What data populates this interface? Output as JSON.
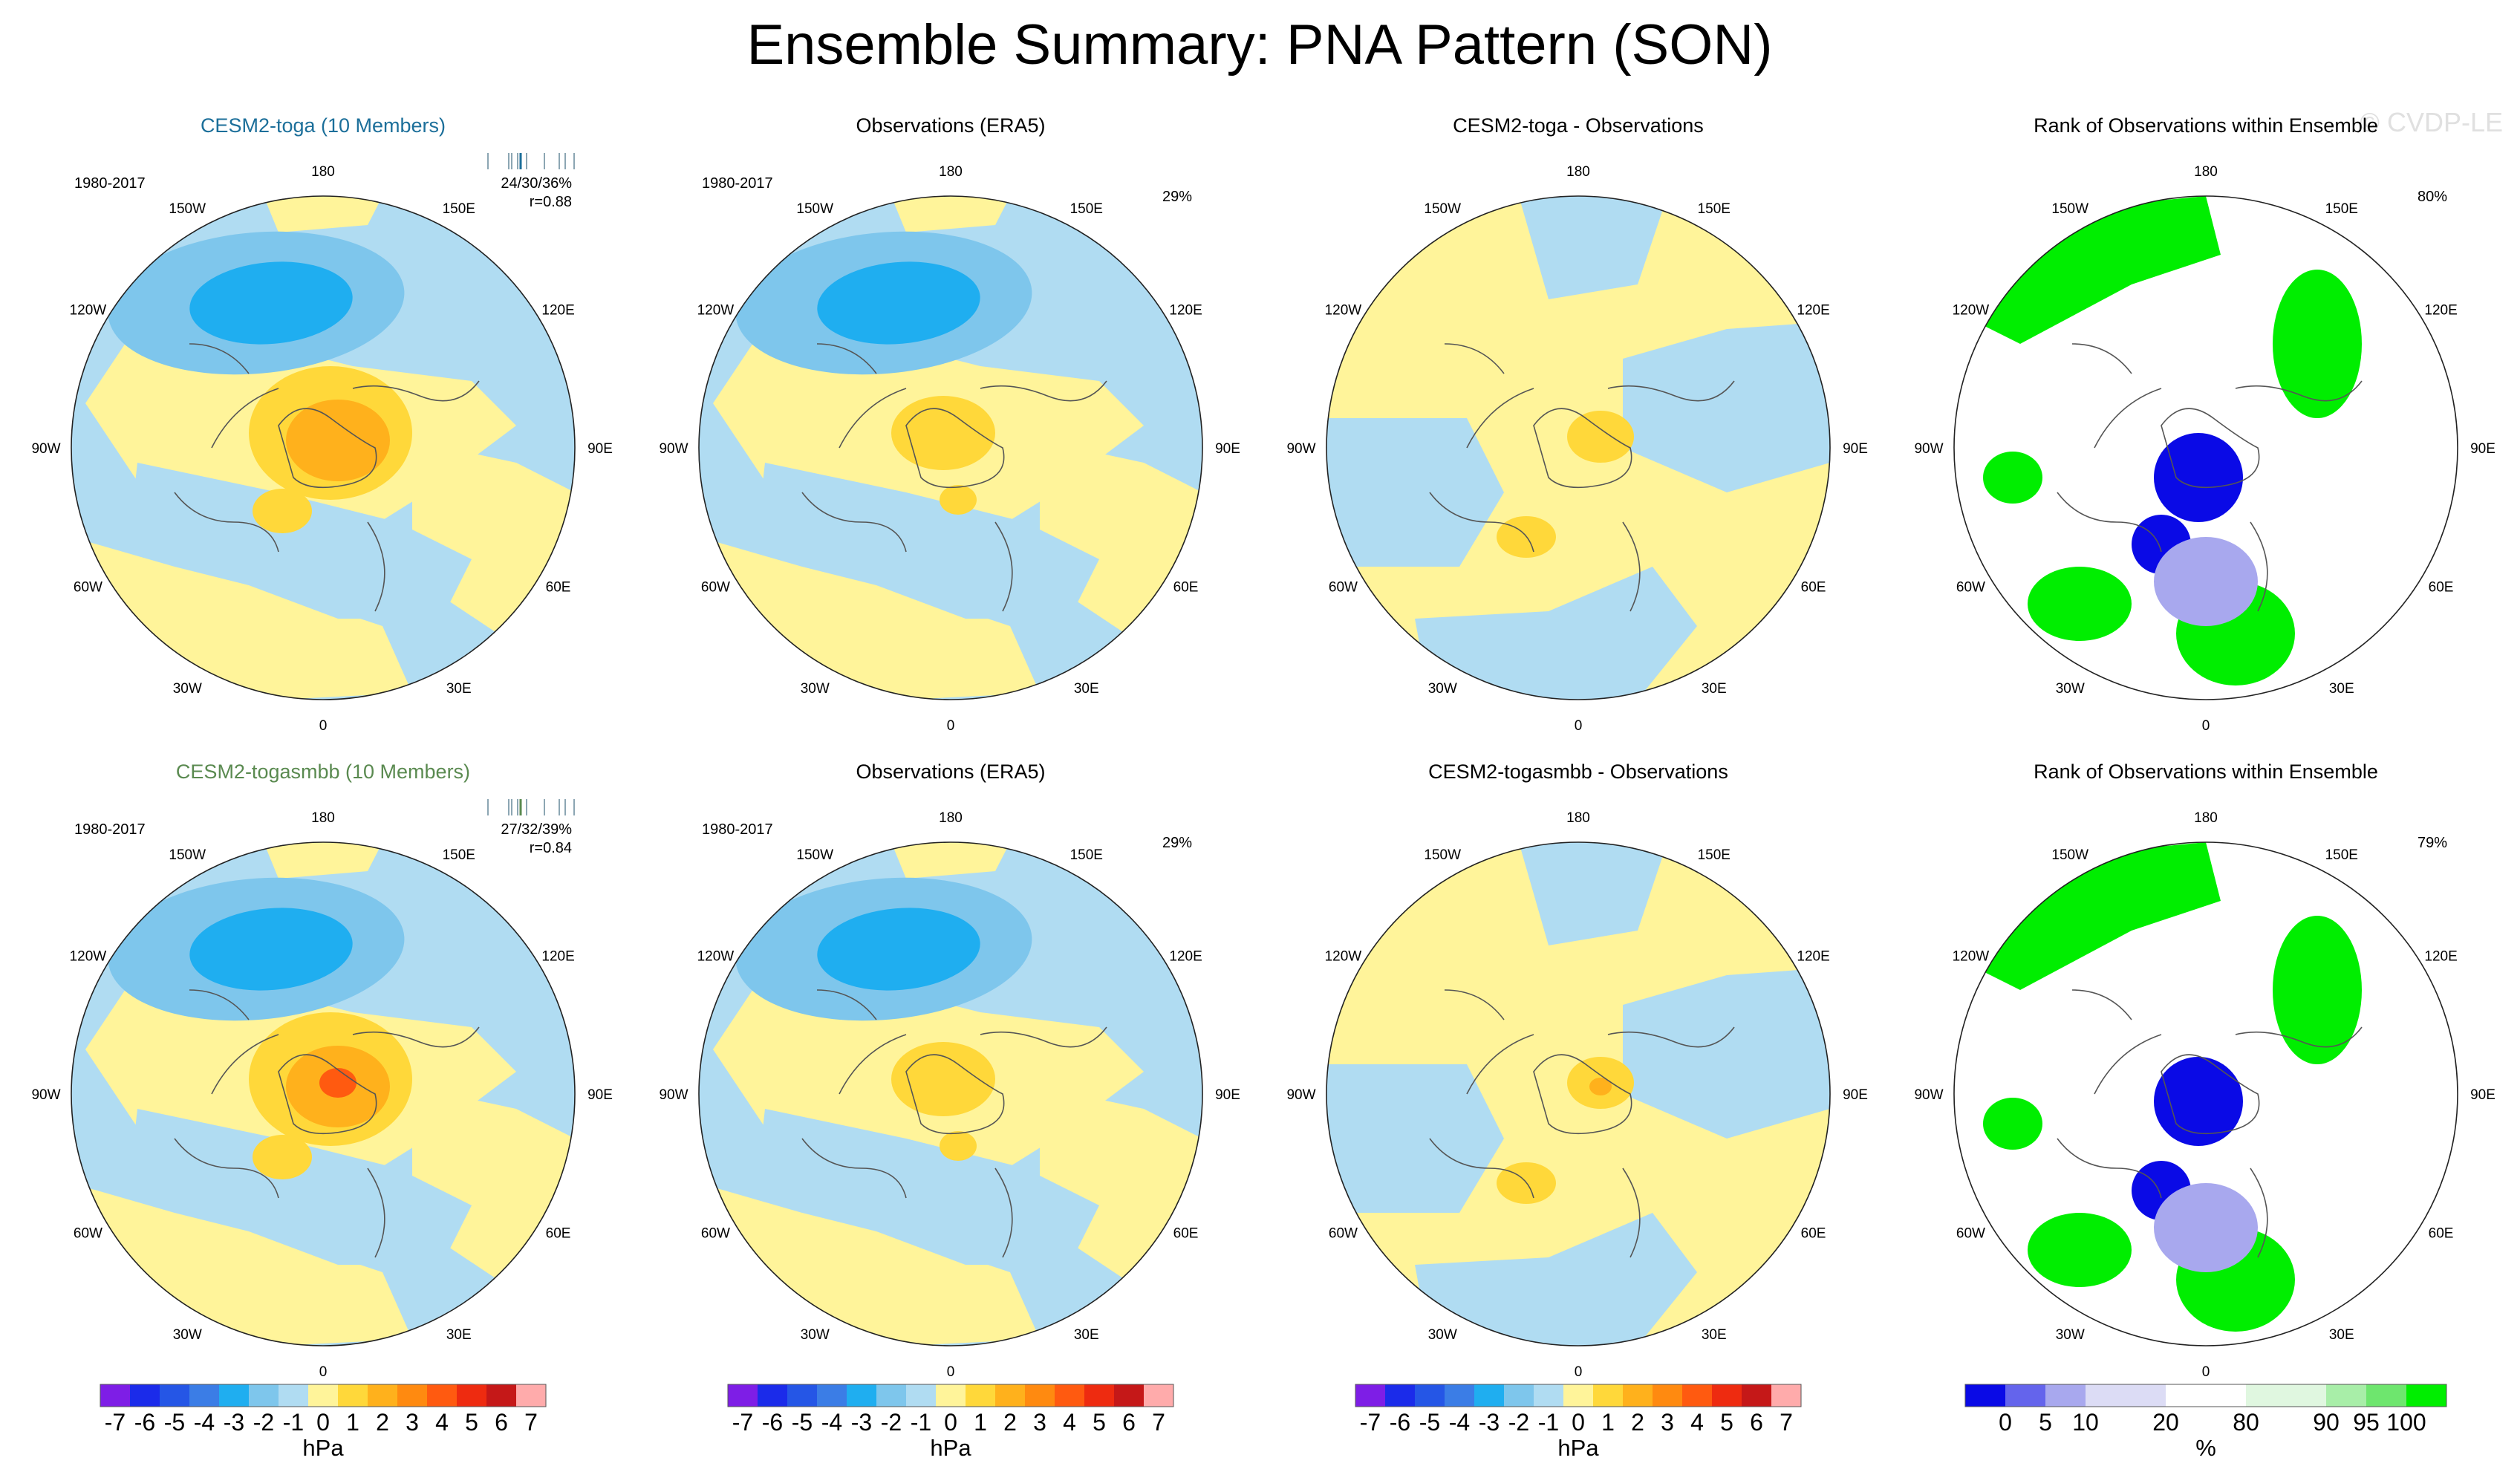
{
  "title": "Ensemble Summary: PNA Pattern (SON)",
  "watermark": "© CVDP-LE",
  "colors": {
    "diverging": [
      "#7e1ee6",
      "#1b2bea",
      "#2556e6",
      "#3b7de6",
      "#1faef0",
      "#7ec6ec",
      "#b0dcf2",
      "#fff49a",
      "#ffd83a",
      "#ffb11c",
      "#ff8a10",
      "#ff5a10",
      "#ee2b10",
      "#c51818",
      "#ffabab"
    ],
    "rank": [
      "#0a0ae6",
      "#6464ec",
      "#a8a8ee",
      "#dcdcf5",
      "#ffffff",
      "#e0f7e0",
      "#a8eea8",
      "#6ee66e",
      "#00ee00"
    ],
    "title_blue": "#1c6f9a",
    "title_green": "#5a8a50"
  },
  "map_labels": {
    "lon": [
      "180",
      "150E",
      "120E",
      "90E",
      "60E",
      "30E",
      "0",
      "30W",
      "60W",
      "90W",
      "120W",
      "150W"
    ]
  },
  "rows": [
    {
      "panels": [
        {
          "title": "CESM2-toga (10 Members)",
          "period": "1980-2017",
          "stat1": "24/30/36%",
          "stat2": "r=0.88"
        },
        {
          "title": "Observations (ERA5)",
          "period": "1980-2017",
          "pct": "29%"
        },
        {
          "title": "CESM2-toga - Observations"
        },
        {
          "title": "Rank of Observations within Ensemble",
          "pct": "80%"
        }
      ]
    },
    {
      "panels": [
        {
          "title": "CESM2-togasmbb (10 Members)",
          "period": "1980-2017",
          "stat1": "27/32/39%",
          "stat2": "r=0.84"
        },
        {
          "title": "Observations (ERA5)",
          "period": "1980-2017",
          "pct": "29%"
        },
        {
          "title": "CESM2-togasmbb - Observations"
        },
        {
          "title": "Rank of Observations within Ensemble",
          "pct": "79%"
        }
      ]
    }
  ],
  "chart_data": {
    "type": "heatmap",
    "title": "Ensemble Summary: PNA Pattern (SON)",
    "projection": "polar stereographic, Northern Hemisphere",
    "panels": [
      {
        "row": 1,
        "col": 1,
        "title": "CESM2-toga (10 Members)",
        "field": "ensemble mean PNA",
        "period": "1980-2017",
        "pct_variance": "24/30/36%",
        "pattern_correlation": 0.88,
        "min_hPa": -5,
        "max_hPa": 3
      },
      {
        "row": 1,
        "col": 2,
        "title": "Observations (ERA5)",
        "field": "PNA",
        "period": "1980-2017",
        "pct_variance": "29%",
        "min_hPa": -5,
        "max_hPa": 2
      },
      {
        "row": 1,
        "col": 3,
        "title": "CESM2-toga - Observations",
        "field": "difference",
        "min_hPa": -1,
        "max_hPa": 2
      },
      {
        "row": 1,
        "col": 4,
        "title": "Rank of Observations within Ensemble",
        "field": "rank",
        "pct_area": "80%"
      },
      {
        "row": 2,
        "col": 1,
        "title": "CESM2-togasmbb (10 Members)",
        "field": "ensemble mean PNA",
        "period": "1980-2017",
        "pct_variance": "27/32/39%",
        "pattern_correlation": 0.84,
        "min_hPa": -4,
        "max_hPa": 4
      },
      {
        "row": 2,
        "col": 2,
        "title": "Observations (ERA5)",
        "field": "PNA",
        "period": "1980-2017",
        "pct_variance": "29%",
        "min_hPa": -5,
        "max_hPa": 2
      },
      {
        "row": 2,
        "col": 3,
        "title": "CESM2-togasmbb - Observations",
        "field": "difference",
        "min_hPa": -1,
        "max_hPa": 3
      },
      {
        "row": 2,
        "col": 4,
        "title": "Rank of Observations within Ensemble",
        "field": "rank",
        "pct_area": "79%"
      }
    ],
    "colorbar_diverging": {
      "labels": [
        "-7",
        "-6",
        "-5",
        "-4",
        "-3",
        "-2",
        "-1",
        "0",
        "1",
        "2",
        "3",
        "4",
        "5",
        "6",
        "7"
      ],
      "unit": "hPa"
    },
    "colorbar_rank": {
      "labels": [
        "0",
        "5",
        "10",
        "20",
        "80",
        "90",
        "95",
        "100"
      ],
      "unit": "%"
    }
  }
}
